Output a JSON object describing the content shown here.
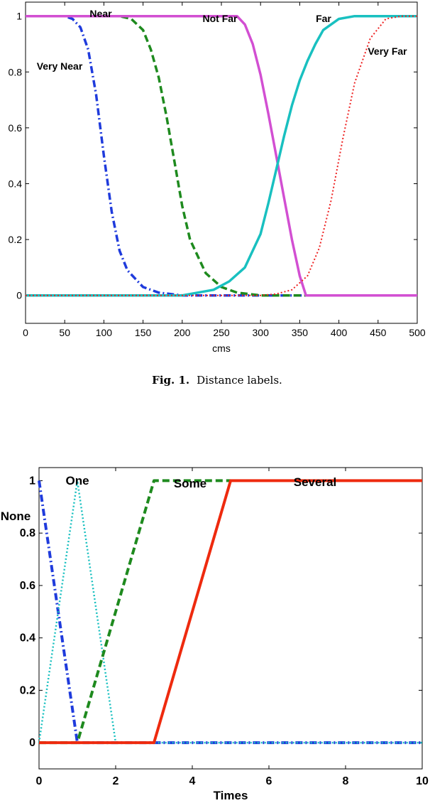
{
  "figure1": {
    "caption_label": "Fig. 1.",
    "caption_text": "Distance labels."
  },
  "chart_data": [
    {
      "type": "line",
      "title": "",
      "xlabel": "cms",
      "ylabel": "",
      "xlim": [
        0,
        500
      ],
      "ylim": [
        -0.1,
        1.05
      ],
      "xticks": [
        "0",
        "50",
        "100",
        "150",
        "200",
        "250",
        "300",
        "350",
        "400",
        "450",
        "500"
      ],
      "yticks": [
        "0",
        "0.2",
        "0.4",
        "0.6",
        "0.8",
        "1"
      ],
      "grid": false,
      "series": [
        {
          "name": "Very Near",
          "color": "#1f3bdc",
          "style": "dashdot",
          "x": [
            0,
            50,
            60,
            70,
            80,
            90,
            100,
            110,
            120,
            130,
            150,
            170,
            200,
            250,
            500
          ],
          "values": [
            1,
            1,
            0.99,
            0.96,
            0.88,
            0.72,
            0.5,
            0.3,
            0.16,
            0.09,
            0.03,
            0.01,
            0,
            0,
            0
          ]
        },
        {
          "name": "Near",
          "color": "#1e8a1e",
          "style": "dashed",
          "x": [
            0,
            120,
            135,
            150,
            160,
            170,
            180,
            190,
            200,
            210,
            230,
            250,
            270,
            300,
            500
          ],
          "values": [
            1,
            1,
            0.99,
            0.95,
            0.88,
            0.78,
            0.64,
            0.48,
            0.32,
            0.2,
            0.08,
            0.03,
            0.01,
            0,
            0
          ]
        },
        {
          "name": "Not Far",
          "color": "#d24fd2",
          "style": "solid",
          "x": [
            0,
            270,
            280,
            290,
            300,
            310,
            320,
            330,
            340,
            350,
            358,
            500
          ],
          "values": [
            1,
            1,
            0.97,
            0.9,
            0.79,
            0.65,
            0.5,
            0.35,
            0.2,
            0.07,
            0,
            0
          ]
        },
        {
          "name": "Far",
          "color": "#19c0c0",
          "style": "solid",
          "x": [
            0,
            200,
            240,
            260,
            280,
            300,
            310,
            320,
            330,
            340,
            350,
            360,
            370,
            380,
            400,
            420,
            440,
            470,
            500
          ],
          "values": [
            0,
            0,
            0.02,
            0.05,
            0.1,
            0.22,
            0.33,
            0.45,
            0.57,
            0.68,
            0.77,
            0.84,
            0.9,
            0.95,
            0.99,
            1,
            1,
            1,
            1
          ]
        },
        {
          "name": "Very Far",
          "color": "#ee2222",
          "style": "dotted",
          "x": [
            0,
            300,
            320,
            340,
            360,
            375,
            390,
            405,
            420,
            440,
            460,
            480,
            500
          ],
          "values": [
            0,
            0,
            0.005,
            0.02,
            0.07,
            0.17,
            0.34,
            0.56,
            0.76,
            0.92,
            0.99,
            1,
            1
          ]
        }
      ],
      "annotations": [
        "Near",
        "Not Far",
        "Far",
        "Very Near",
        "Very Far"
      ]
    },
    {
      "type": "line",
      "title": "",
      "xlabel": "Times",
      "ylabel": "",
      "xlim": [
        0,
        10
      ],
      "ylim": [
        -0.1,
        1.05
      ],
      "xticks": [
        "0",
        "2",
        "4",
        "6",
        "8",
        "10"
      ],
      "yticks": [
        "0",
        "0.2",
        "0.4",
        "0.6",
        "0.8",
        "1"
      ],
      "grid": false,
      "series": [
        {
          "name": "None",
          "color": "#1f3bdc",
          "style": "dashdot",
          "x": [
            0,
            1,
            10
          ],
          "values": [
            1,
            0,
            0
          ]
        },
        {
          "name": "One",
          "color": "#19c0c0",
          "style": "dotted",
          "x": [
            0,
            1,
            2,
            10
          ],
          "values": [
            0,
            1,
            0,
            0
          ]
        },
        {
          "name": "Some",
          "color": "#1e8a1e",
          "style": "dashed",
          "x": [
            0,
            1,
            3,
            5
          ],
          "values": [
            0,
            0,
            1,
            1
          ]
        },
        {
          "name": "Several",
          "color": "#ee2a0e",
          "style": "solid",
          "x": [
            0,
            3,
            5,
            10
          ],
          "values": [
            0,
            0,
            1,
            1
          ]
        }
      ],
      "annotations": [
        "One",
        "Some",
        "Several",
        "None"
      ]
    }
  ]
}
